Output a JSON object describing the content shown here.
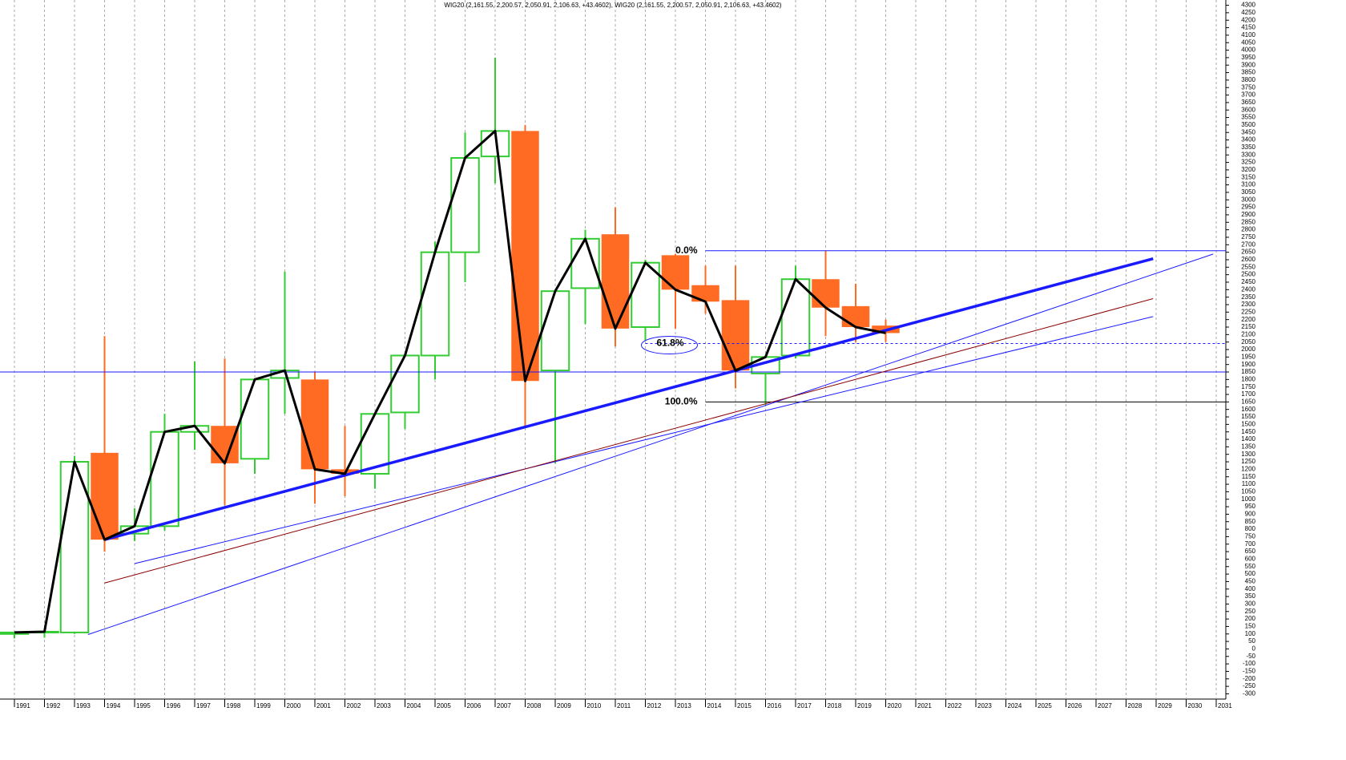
{
  "chart_data": {
    "type": "candlestick",
    "title": "WIG20 (2,161.55, 2,200.57, 2,050.91, 2,106.63, +43.4602), WIG20 (2,161.55, 2,200.57, 2,050.91, 2,106.63, +43.4602)",
    "x": [
      1991,
      1992,
      1993,
      1994,
      1995,
      1996,
      1997,
      1998,
      1999,
      2000,
      2001,
      2002,
      2003,
      2004,
      2005,
      2006,
      2007,
      2008,
      2009,
      2010,
      2011,
      2012,
      2013,
      2014,
      2015,
      2016,
      2017,
      2018,
      2019,
      2020
    ],
    "open": [
      100,
      110,
      110,
      1310,
      770,
      820,
      1450,
      1490,
      1270,
      1810,
      1800,
      1200,
      1170,
      1580,
      1960,
      2650,
      3290,
      3460,
      1860,
      2410,
      2770,
      2150,
      2630,
      2430,
      2330,
      1840,
      1960,
      2470,
      2290,
      2160
    ],
    "high": [
      110,
      120,
      1290,
      2090,
      940,
      1570,
      1920,
      1940,
      1800,
      2520,
      1850,
      1490,
      1580,
      1960,
      2720,
      3450,
      3950,
      3500,
      2400,
      2800,
      2950,
      2600,
      2640,
      2560,
      2560,
      1960,
      2560,
      2660,
      2440,
      2200
    ],
    "low": [
      70,
      75,
      100,
      650,
      720,
      790,
      1330,
      960,
      1170,
      1570,
      970,
      1020,
      1070,
      1470,
      1800,
      2450,
      3110,
      1480,
      1240,
      2170,
      2020,
      2060,
      2140,
      2240,
      1740,
      1630,
      1940,
      2090,
      2050,
      2050
    ],
    "close": [
      110,
      115,
      1250,
      730,
      820,
      1450,
      1490,
      1240,
      1800,
      1860,
      1200,
      1170,
      1570,
      1960,
      2650,
      3280,
      3460,
      1790,
      2390,
      2740,
      2140,
      2580,
      2400,
      2320,
      1860,
      1950,
      2470,
      2280,
      2150,
      2110
    ],
    "up_color": "#33cc33",
    "down_color": "#ff6b22",
    "close_line_color": "#000000",
    "xlim": [
      1990.52,
      2031.32
    ],
    "xticks": [
      1991,
      1992,
      1993,
      1994,
      1995,
      1996,
      1997,
      1998,
      1999,
      2000,
      2001,
      2002,
      2003,
      2004,
      2005,
      2006,
      2007,
      2008,
      2009,
      2010,
      2011,
      2012,
      2013,
      2014,
      2015,
      2016,
      2017,
      2018,
      2019,
      2020,
      2021,
      2022,
      2023,
      2024,
      2025,
      2026,
      2027,
      2028,
      2029,
      2030,
      2031
    ],
    "ylim": [
      -335,
      4335
    ],
    "yticks": [
      4300,
      4250,
      4200,
      4150,
      4100,
      4050,
      4000,
      3950,
      3900,
      3850,
      3800,
      3750,
      3700,
      3650,
      3600,
      3550,
      3500,
      3450,
      3400,
      3350,
      3300,
      3250,
      3200,
      3150,
      3100,
      3050,
      3000,
      2950,
      2900,
      2850,
      2800,
      2750,
      2700,
      2650,
      2600,
      2550,
      2500,
      2450,
      2400,
      2350,
      2300,
      2250,
      2200,
      2150,
      2100,
      2050,
      2000,
      1950,
      1900,
      1850,
      1800,
      1750,
      1700,
      1650,
      1600,
      1550,
      1500,
      1450,
      1400,
      1350,
      1300,
      1250,
      1200,
      1150,
      1100,
      1050,
      1000,
      950,
      900,
      850,
      800,
      750,
      700,
      650,
      600,
      550,
      500,
      450,
      400,
      350,
      300,
      250,
      200,
      150,
      100,
      50,
      0,
      -50,
      -100,
      -150,
      -200,
      -250,
      -300
    ],
    "grid": "x",
    "hlines": [
      {
        "value": 1850,
        "color": "#1a1aff"
      }
    ],
    "levels": [
      {
        "value": 2660,
        "label": "0.0%",
        "x_start": 2014,
        "color": "#1a1aff",
        "dashed": false,
        "circled": false
      },
      {
        "value": 2040,
        "label": "61.8%",
        "x_start": 2012,
        "color": "#1a1aff",
        "dashed": true,
        "circled": true
      },
      {
        "value": 1650,
        "label": "100.0%",
        "x_start": 2014,
        "color": "#000000",
        "dashed": false,
        "circled": false
      }
    ],
    "trend_lines": [
      {
        "x": [
          1994,
          2028.9
        ],
        "y": [
          730,
          2607
        ],
        "color": "#1a1aff",
        "width": 3.5
      },
      {
        "x": [
          1993.45,
          2030.9
        ],
        "y": [
          96,
          2638
        ],
        "color": "#1a1aff",
        "width": 1
      },
      {
        "x": [
          1995,
          2028.9
        ],
        "y": [
          570,
          2220
        ],
        "color": "#1a1aff",
        "width": 1
      },
      {
        "x": [
          1994,
          2028.9
        ],
        "y": [
          440,
          2340
        ],
        "color": "#8b0000",
        "width": 1
      }
    ]
  }
}
